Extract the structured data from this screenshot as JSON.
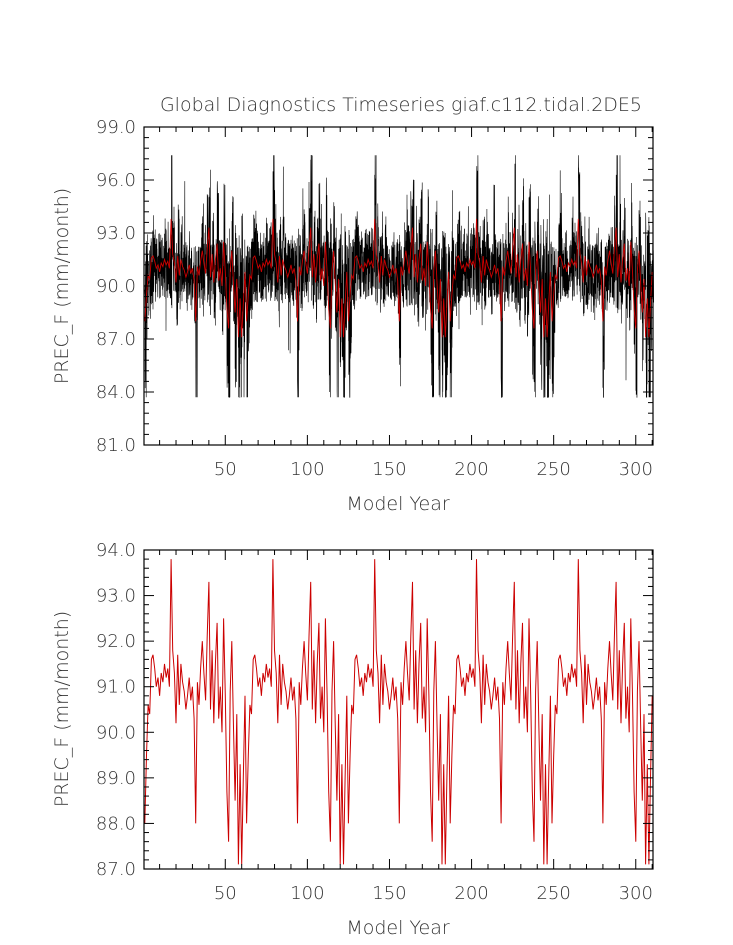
{
  "title": "Global Diagnostics Timeseries giaf.c112.tidal.2DE5",
  "colors": {
    "monthly": "#000000",
    "annual": "#cc0000",
    "axis": "#000000",
    "text": "#333333"
  },
  "chart_data": [
    {
      "type": "line",
      "title": "Global Diagnostics Timeseries giaf.c112.tidal.2DE5",
      "xlabel": "Model Year",
      "ylabel": "PREC_F (mm/month)",
      "xlim": [
        0.5,
        310.5
      ],
      "ylim": [
        81.0,
        99.0
      ],
      "xticks": [
        "50",
        "100",
        "150",
        "200",
        "250",
        "300"
      ],
      "yticks": [
        "81.0",
        "84.0",
        "87.0",
        "90.0",
        "93.0",
        "96.0",
        "99.0"
      ],
      "grid": false,
      "series": [
        {
          "color": "#000000",
          "resolution": "monthly",
          "x_start": 1,
          "x_end": 310,
          "samples_per_year": 12,
          "mean": 90.8,
          "min": 83.7,
          "max": 97.4
        },
        {
          "color": "#cc0000",
          "resolution": "annual",
          "x_start": 1,
          "x_end": 310,
          "mean": 90.9,
          "min": 87.1,
          "max": 93.8
        }
      ]
    },
    {
      "type": "line",
      "title": "",
      "xlabel": "Model Year",
      "ylabel": "PREC_F (mm/month)",
      "xlim": [
        0.5,
        310.5
      ],
      "ylim": [
        87.0,
        94.0
      ],
      "xticks": [
        "50",
        "100",
        "150",
        "200",
        "250",
        "300"
      ],
      "yticks": [
        "87.0",
        "88.0",
        "89.0",
        "90.0",
        "91.0",
        "92.0",
        "93.0",
        "94.0"
      ],
      "grid": false,
      "series": [
        {
          "color": "#cc0000",
          "resolution": "annual",
          "x": [
            1,
            2,
            3,
            4,
            5,
            6,
            7,
            8,
            9,
            10,
            11,
            12,
            13,
            14,
            15,
            16,
            17,
            18,
            19,
            20,
            21,
            22,
            23,
            24,
            25,
            26,
            27,
            28,
            29,
            30,
            31,
            32,
            33,
            34,
            35,
            36,
            37,
            38,
            39,
            40,
            41,
            42,
            43,
            44,
            45,
            46,
            47,
            48,
            49,
            50,
            51,
            52,
            53,
            54,
            55,
            56,
            57,
            58,
            59,
            60,
            61,
            62,
            63
          ],
          "values": [
            88.0,
            89.5,
            90.6,
            90.4,
            91.6,
            91.7,
            91.4,
            91.0,
            91.2,
            90.8,
            91.3,
            91.1,
            91.5,
            91.2,
            91.4,
            91.0,
            93.8,
            91.8,
            91.3,
            90.2,
            91.7,
            90.6,
            91.5,
            91.1,
            90.9,
            90.5,
            90.8,
            91.2,
            90.7,
            91.0,
            90.3,
            88.0,
            91.1,
            90.6,
            91.4,
            92.0,
            91.3,
            90.7,
            92.1,
            93.3,
            90.5,
            91.8,
            90.2,
            91.5,
            92.4,
            90.3,
            91.0,
            90.0,
            92.5,
            90.8,
            88.7,
            87.6,
            90.9,
            92.0,
            90.1,
            88.5,
            90.4,
            87.1,
            89.3,
            87.1,
            89.0,
            90.8,
            91.2
          ]
        }
      ]
    }
  ]
}
